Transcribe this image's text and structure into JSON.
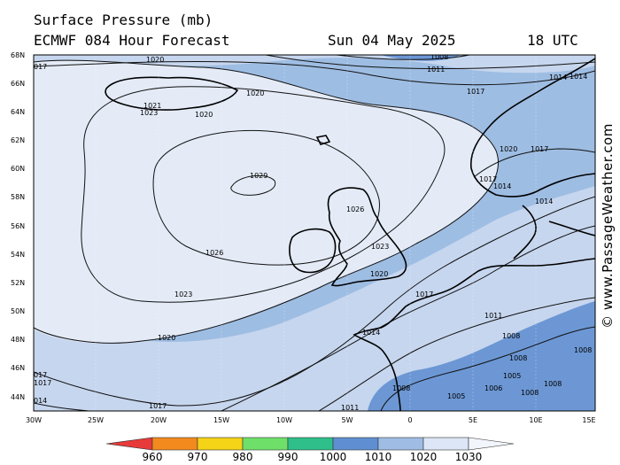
{
  "header": {
    "title_line1": "Surface Pressure (mb)",
    "title_line2": "ECMWF 084 Hour Forecast",
    "date": "Sun 04 May 2025",
    "time": "18 UTC"
  },
  "credit": "© www.PassageWeather.com",
  "axes": {
    "lat_labels": [
      "68N",
      "66N",
      "64N",
      "62N",
      "60N",
      "58N",
      "56N",
      "54N",
      "52N",
      "50N",
      "48N",
      "46N",
      "44N"
    ],
    "lon_labels": [
      "30W",
      "25W",
      "20W",
      "15W",
      "10W",
      "5W",
      "0",
      "5E",
      "10E",
      "15E"
    ]
  },
  "scale": {
    "labels": [
      "960",
      "970",
      "980",
      "990",
      "1000",
      "1010",
      "1020",
      "1030"
    ],
    "colors": [
      "#e83a3a",
      "#f28a1e",
      "#f5d316",
      "#6ee06a",
      "#2fbf8a",
      "#5f8fd2",
      "#9fbde4",
      "#dce6f6",
      "#f2f5fb"
    ]
  },
  "contour_labels": [
    {
      "text": "1020"
    },
    {
      "text": "1020"
    },
    {
      "text": "1020"
    },
    {
      "text": "1023"
    },
    {
      "text": "1021"
    },
    {
      "text": "1026"
    },
    {
      "text": "1029"
    },
    {
      "text": "1026"
    },
    {
      "text": "1023"
    },
    {
      "text": "1023"
    },
    {
      "text": "1020"
    },
    {
      "text": "1020"
    },
    {
      "text": "1017"
    },
    {
      "text": "1017"
    },
    {
      "text": "1017"
    },
    {
      "text": "1014"
    },
    {
      "text": "1014"
    },
    {
      "text": "1011"
    },
    {
      "text": "1011"
    },
    {
      "text": "1008"
    },
    {
      "text": "1008"
    },
    {
      "text": "1008"
    },
    {
      "text": "1008"
    },
    {
      "text": "1008"
    },
    {
      "text": "1005"
    },
    {
      "text": "1005"
    },
    {
      "text": "1006"
    },
    {
      "text": "1017"
    },
    {
      "text": "1014"
    },
    {
      "text": "1014"
    },
    {
      "text": "1014"
    },
    {
      "text": "1017"
    },
    {
      "text": "1020"
    },
    {
      "text": "1017"
    },
    {
      "text": "1014"
    },
    {
      "text": "1008"
    },
    {
      "text": "1011"
    },
    {
      "text": "017"
    },
    {
      "text": "014"
    },
    {
      "text": "014"
    },
    {
      "text": "017"
    },
    {
      "text": "1017"
    },
    {
      "text": "1011"
    },
    {
      "text": "1008"
    }
  ],
  "colors": {
    "p1030": "#e4ebf7",
    "p1020": "#c6d6ee",
    "p1010": "#9ebde3",
    "p1000": "#6c97d4",
    "land_border": "#000000"
  }
}
